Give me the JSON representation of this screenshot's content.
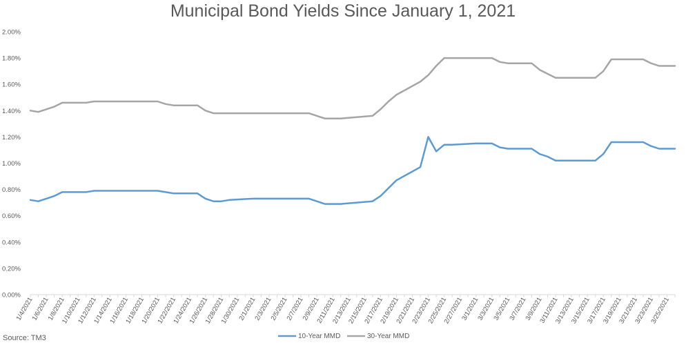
{
  "chart_data": {
    "type": "line",
    "title": "Municipal Bond Yields Since January 1, 2021",
    "xlabel": "",
    "ylabel": "",
    "ylim": [
      0,
      2
    ],
    "y_ticks": [
      "0.00%",
      "0.20%",
      "0.40%",
      "0.60%",
      "0.80%",
      "1.00%",
      "1.20%",
      "1.40%",
      "1.60%",
      "1.80%",
      "2.00%"
    ],
    "x_tick_labels": [
      "1/4/2021",
      "1/6/2021",
      "1/8/2021",
      "1/10/2021",
      "1/12/2021",
      "1/14/2021",
      "1/16/2021",
      "1/18/2021",
      "1/20/2021",
      "1/22/2021",
      "1/24/2021",
      "1/26/2021",
      "1/28/2021",
      "1/30/2021",
      "2/1/2021",
      "2/3/2021",
      "2/5/2021",
      "2/7/2021",
      "2/9/2021",
      "2/11/2021",
      "2/13/2021",
      "2/15/2021",
      "2/17/2021",
      "2/19/2021",
      "2/21/2021",
      "2/23/2021",
      "2/25/2021",
      "2/27/2021",
      "3/1/2021",
      "3/3/2021",
      "3/5/2021",
      "3/7/2021",
      "3/9/2021",
      "3/11/2021",
      "3/13/2021",
      "3/15/2021",
      "3/17/2021",
      "3/19/2021",
      "3/21/2021",
      "3/23/2021",
      "3/25/2021"
    ],
    "x_start_date": "2021-01-04",
    "x_end_date": "2021-03-26",
    "grid": false,
    "legend_position": "bottom",
    "series": [
      {
        "name": "10-Year MMD",
        "color": "#5B9BD5",
        "points": [
          [
            "2021-01-04",
            0.72
          ],
          [
            "2021-01-05",
            0.71
          ],
          [
            "2021-01-06",
            0.73
          ],
          [
            "2021-01-07",
            0.75
          ],
          [
            "2021-01-08",
            0.78
          ],
          [
            "2021-01-11",
            0.78
          ],
          [
            "2021-01-12",
            0.79
          ],
          [
            "2021-01-19",
            0.79
          ],
          [
            "2021-01-20",
            0.79
          ],
          [
            "2021-01-21",
            0.78
          ],
          [
            "2021-01-22",
            0.77
          ],
          [
            "2021-01-25",
            0.77
          ],
          [
            "2021-01-26",
            0.73
          ],
          [
            "2021-01-27",
            0.71
          ],
          [
            "2021-01-28",
            0.71
          ],
          [
            "2021-01-29",
            0.72
          ],
          [
            "2021-02-01",
            0.73
          ],
          [
            "2021-02-08",
            0.73
          ],
          [
            "2021-02-09",
            0.71
          ],
          [
            "2021-02-10",
            0.69
          ],
          [
            "2021-02-12",
            0.69
          ],
          [
            "2021-02-16",
            0.71
          ],
          [
            "2021-02-17",
            0.75
          ],
          [
            "2021-02-18",
            0.81
          ],
          [
            "2021-02-19",
            0.87
          ],
          [
            "2021-02-22",
            0.97
          ],
          [
            "2021-02-23",
            1.2
          ],
          [
            "2021-02-24",
            1.09
          ],
          [
            "2021-02-25",
            1.14
          ],
          [
            "2021-02-26",
            1.14
          ],
          [
            "2021-03-01",
            1.15
          ],
          [
            "2021-03-03",
            1.15
          ],
          [
            "2021-03-04",
            1.12
          ],
          [
            "2021-03-05",
            1.11
          ],
          [
            "2021-03-08",
            1.11
          ],
          [
            "2021-03-09",
            1.07
          ],
          [
            "2021-03-10",
            1.05
          ],
          [
            "2021-03-11",
            1.02
          ],
          [
            "2021-03-16",
            1.02
          ],
          [
            "2021-03-17",
            1.07
          ],
          [
            "2021-03-18",
            1.16
          ],
          [
            "2021-03-22",
            1.16
          ],
          [
            "2021-03-23",
            1.13
          ],
          [
            "2021-03-24",
            1.11
          ],
          [
            "2021-03-26",
            1.11
          ]
        ]
      },
      {
        "name": "30-Year MMD",
        "color": "#A5A5A5",
        "points": [
          [
            "2021-01-04",
            1.4
          ],
          [
            "2021-01-05",
            1.39
          ],
          [
            "2021-01-06",
            1.41
          ],
          [
            "2021-01-07",
            1.43
          ],
          [
            "2021-01-08",
            1.46
          ],
          [
            "2021-01-11",
            1.46
          ],
          [
            "2021-01-12",
            1.47
          ],
          [
            "2021-01-19",
            1.47
          ],
          [
            "2021-01-20",
            1.47
          ],
          [
            "2021-01-21",
            1.45
          ],
          [
            "2021-01-22",
            1.44
          ],
          [
            "2021-01-25",
            1.44
          ],
          [
            "2021-01-26",
            1.4
          ],
          [
            "2021-01-27",
            1.38
          ],
          [
            "2021-01-28",
            1.38
          ],
          [
            "2021-02-08",
            1.38
          ],
          [
            "2021-02-09",
            1.36
          ],
          [
            "2021-02-10",
            1.34
          ],
          [
            "2021-02-12",
            1.34
          ],
          [
            "2021-02-16",
            1.36
          ],
          [
            "2021-02-17",
            1.41
          ],
          [
            "2021-02-18",
            1.47
          ],
          [
            "2021-02-19",
            1.52
          ],
          [
            "2021-02-22",
            1.62
          ],
          [
            "2021-02-23",
            1.67
          ],
          [
            "2021-02-24",
            1.74
          ],
          [
            "2021-02-25",
            1.8
          ],
          [
            "2021-03-03",
            1.8
          ],
          [
            "2021-03-04",
            1.77
          ],
          [
            "2021-03-05",
            1.76
          ],
          [
            "2021-03-08",
            1.76
          ],
          [
            "2021-03-09",
            1.71
          ],
          [
            "2021-03-10",
            1.68
          ],
          [
            "2021-03-11",
            1.65
          ],
          [
            "2021-03-16",
            1.65
          ],
          [
            "2021-03-17",
            1.7
          ],
          [
            "2021-03-18",
            1.79
          ],
          [
            "2021-03-22",
            1.79
          ],
          [
            "2021-03-23",
            1.76
          ],
          [
            "2021-03-24",
            1.74
          ],
          [
            "2021-03-26",
            1.74
          ]
        ]
      }
    ]
  },
  "source_note": "Source: TM3"
}
